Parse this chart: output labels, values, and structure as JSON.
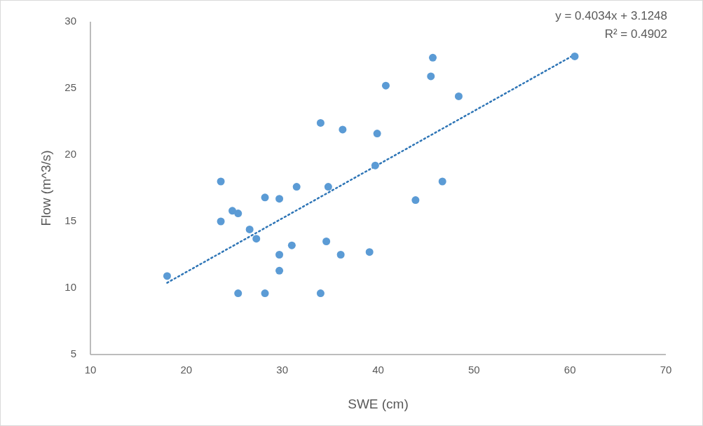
{
  "chart_data": {
    "type": "scatter",
    "xlabel": "SWE (cm)",
    "ylabel": "Flow (m^3/s)",
    "xlim": [
      10,
      70
    ],
    "xticks": [
      10,
      20,
      30,
      40,
      50,
      60,
      70
    ],
    "ylim": [
      5,
      30
    ],
    "yticks": [
      5,
      10,
      15,
      20,
      25,
      30
    ],
    "grid": false,
    "marker": "circle",
    "annotations": [
      "y = 0.4034x + 3.1248",
      "R² = 0.4902"
    ],
    "series": [
      {
        "type": "scatter",
        "color": "#5b9bd5",
        "x": [
          18.0,
          23.6,
          23.6,
          24.8,
          25.4,
          25.4,
          26.6,
          27.3,
          28.2,
          28.2,
          29.7,
          29.7,
          29.7,
          31.0,
          31.5,
          34.0,
          34.0,
          34.6,
          34.8,
          36.1,
          36.3,
          39.1,
          39.7,
          39.9,
          40.8,
          43.9,
          45.5,
          45.7,
          46.7,
          48.4,
          60.5
        ],
        "values": [
          10.9,
          15.0,
          18.0,
          15.8,
          15.6,
          9.6,
          14.4,
          13.7,
          16.8,
          9.6,
          16.7,
          12.5,
          11.3,
          13.2,
          17.6,
          22.4,
          9.6,
          13.5,
          17.6,
          12.5,
          21.9,
          12.7,
          19.2,
          21.6,
          25.2,
          16.6,
          25.9,
          27.3,
          18.0,
          24.4,
          27.4
        ]
      },
      {
        "type": "line",
        "color": "#2e75b6",
        "line_style": "dotted",
        "marker": "none",
        "x": [
          18.0,
          60.5
        ],
        "values": [
          10.39,
          27.53
        ]
      }
    ]
  }
}
